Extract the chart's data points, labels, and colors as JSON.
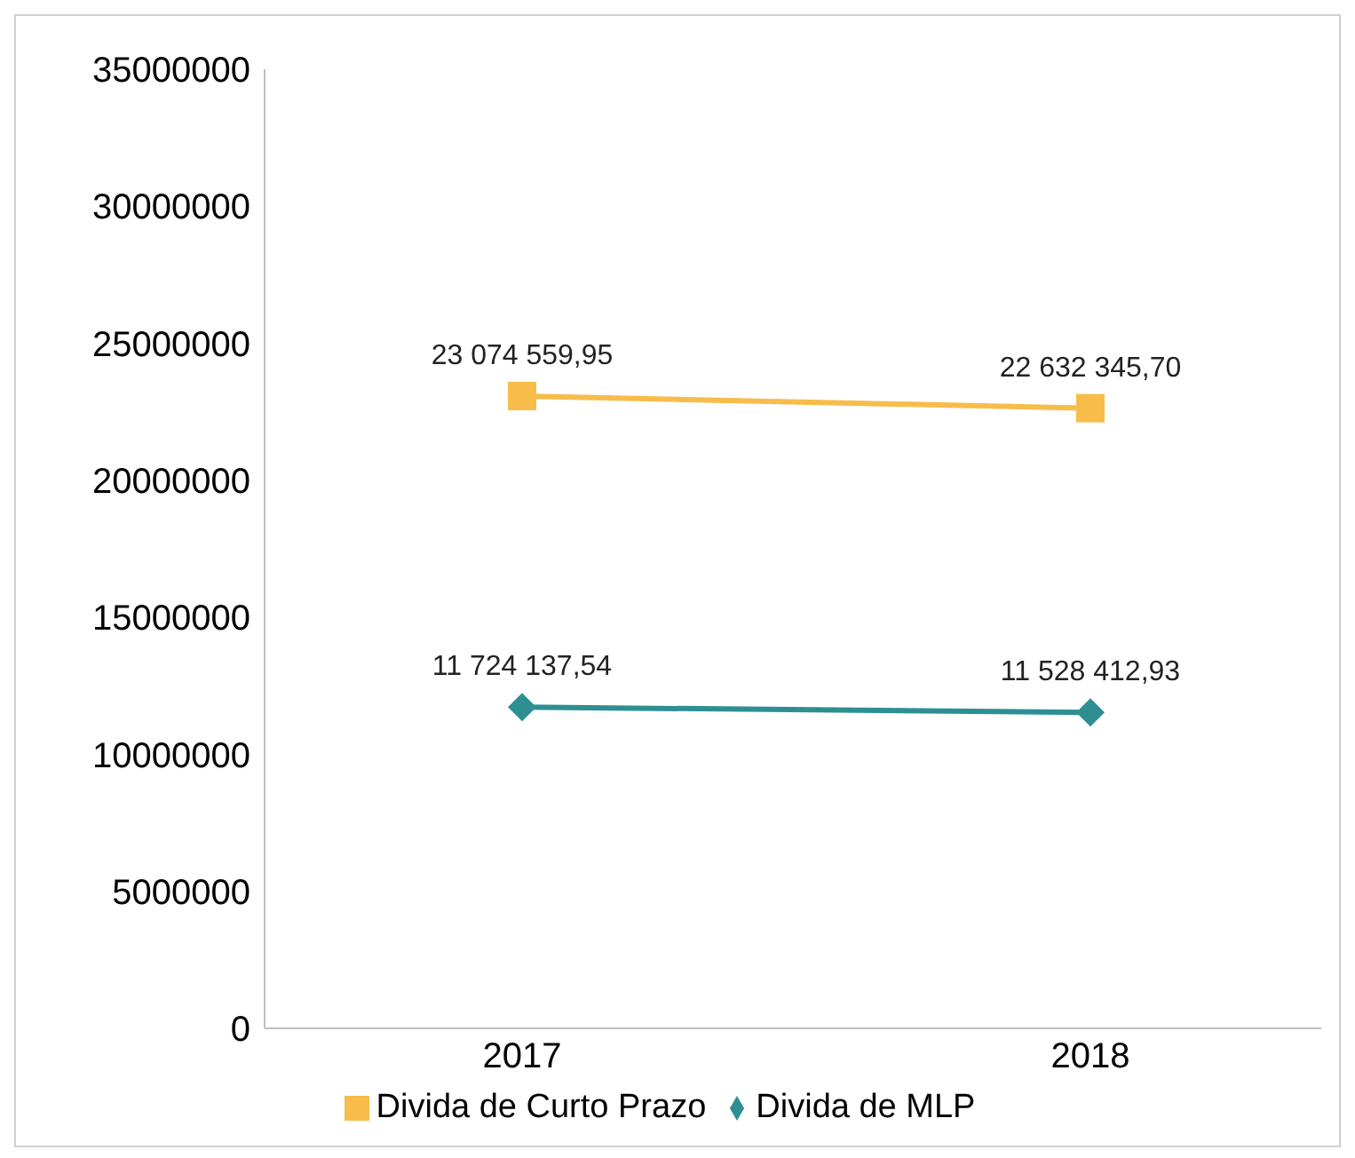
{
  "chart_data": {
    "type": "line",
    "categories": [
      "2017",
      "2018"
    ],
    "series": [
      {
        "name": "Divida de MLP",
        "color": "#2e8f93",
        "marker": "diamond",
        "values": [
          11724137.54,
          11528412.93
        ],
        "value_labels": [
          "11 724 137,54",
          "11 528 412,93"
        ]
      },
      {
        "name": "Divida de Curto Prazo",
        "color": "#f7bc4a",
        "marker": "square",
        "values": [
          23074559.95,
          22632345.7
        ],
        "value_labels": [
          "23 074 559,95",
          "22 632 345,70"
        ]
      }
    ],
    "ylim": [
      0,
      35000000
    ],
    "yticks": [
      0,
      5000000,
      10000000,
      15000000,
      20000000,
      25000000,
      30000000,
      35000000
    ],
    "grid": false,
    "legend": "bottom"
  }
}
